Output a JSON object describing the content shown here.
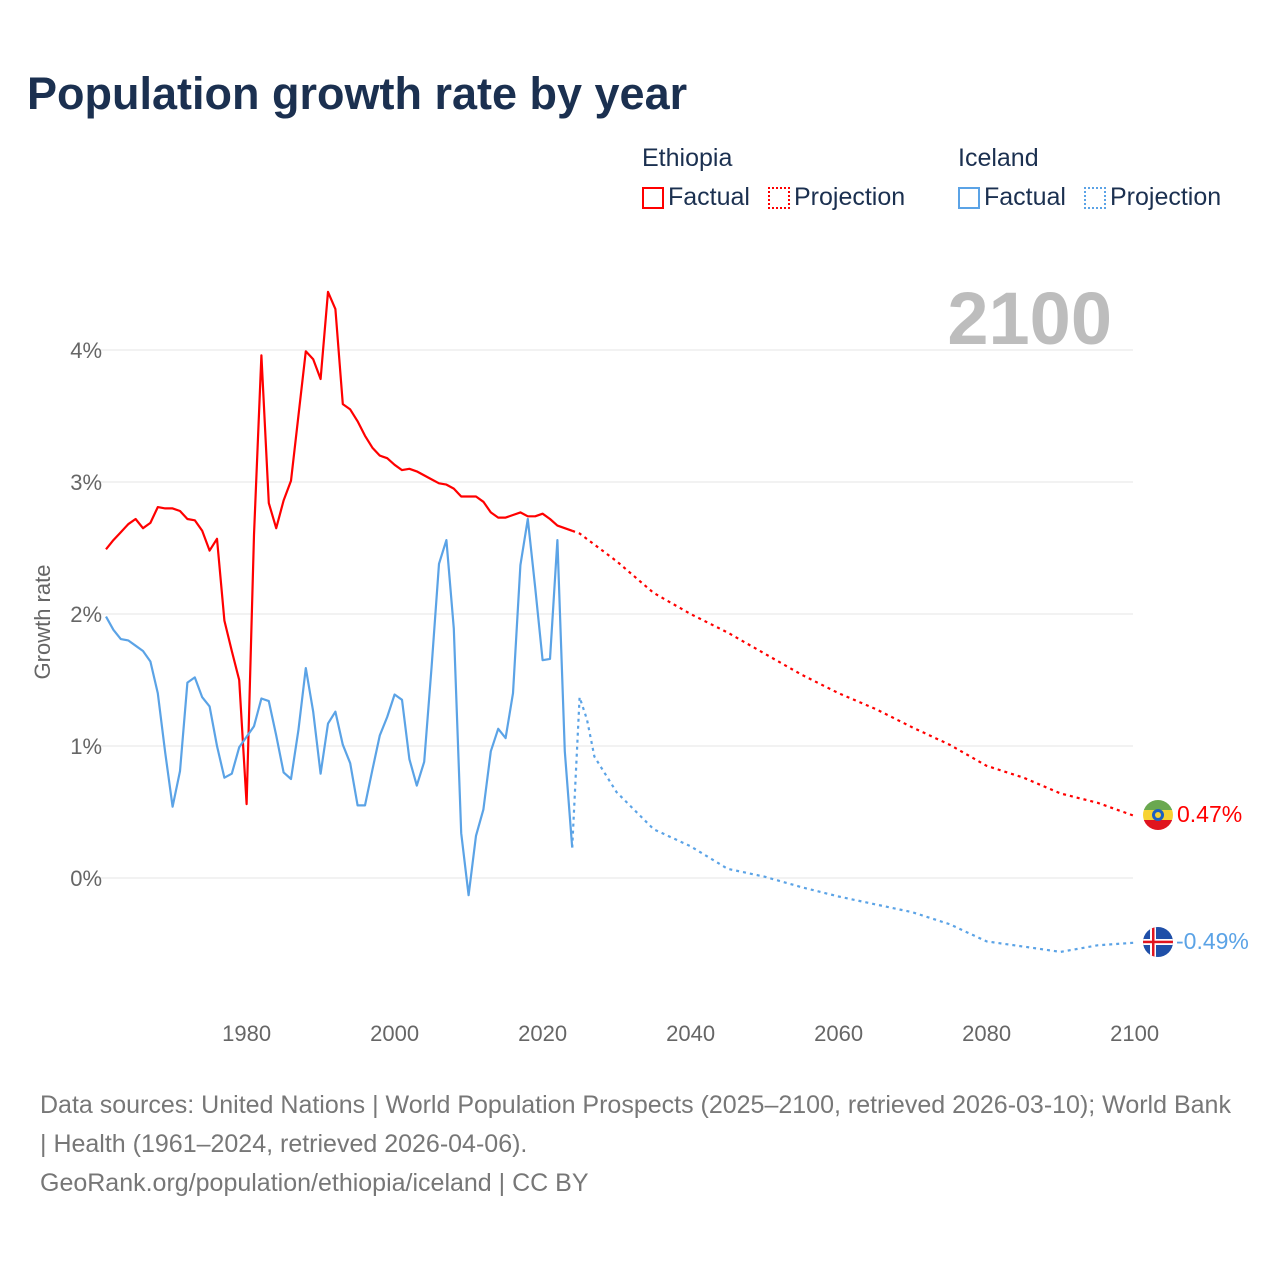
{
  "title": "Population growth rate by year",
  "year_badge": "2100",
  "legend": {
    "groups": [
      {
        "name": "Ethiopia",
        "factual": "Factual",
        "projection": "Projection",
        "color": "#ff0000"
      },
      {
        "name": "Iceland",
        "factual": "Factual",
        "projection": "Projection",
        "color": "#5ba3e6"
      }
    ]
  },
  "end_labels": {
    "ethiopia": "0.47%",
    "iceland": "-0.49%"
  },
  "footer": {
    "line1": "Data sources: United Nations | World Population Prospects (2025–2100, retrieved 2026-03-10); World Bank | Health (1961–2024, retrieved 2026-04-06).",
    "line2": "GeoRank.org/population/ethiopia/iceland | CC BY"
  },
  "chart_data": {
    "type": "line",
    "ylabel": "Growth rate",
    "xlabel": "",
    "xlim": [
      1961,
      2100
    ],
    "ylim": [
      -0.8,
      4.6
    ],
    "x_ticks": [
      "1980",
      "2000",
      "2020",
      "2040",
      "2060",
      "2080",
      "2100"
    ],
    "y_ticks": [
      "0%",
      "1%",
      "2%",
      "3%",
      "4%"
    ],
    "grid": true,
    "series": [
      {
        "name": "Ethiopia Factual",
        "color": "#ff0000",
        "dashed": false,
        "x": [
          1961,
          1962,
          1963,
          1964,
          1965,
          1966,
          1967,
          1968,
          1969,
          1970,
          1971,
          1972,
          1973,
          1974,
          1975,
          1976,
          1977,
          1978,
          1979,
          1980,
          1981,
          1982,
          1983,
          1984,
          1985,
          1986,
          1987,
          1988,
          1989,
          1990,
          1991,
          1992,
          1993,
          1994,
          1995,
          1996,
          1997,
          1998,
          1999,
          2000,
          2001,
          2002,
          2003,
          2004,
          2005,
          2006,
          2007,
          2008,
          2009,
          2010,
          2011,
          2012,
          2013,
          2014,
          2015,
          2016,
          2017,
          2018,
          2019,
          2020,
          2021,
          2022,
          2023,
          2024
        ],
        "y": [
          2.49,
          2.56,
          2.62,
          2.68,
          2.72,
          2.65,
          2.69,
          2.81,
          2.8,
          2.8,
          2.78,
          2.72,
          2.71,
          2.63,
          2.48,
          2.57,
          1.95,
          1.72,
          1.5,
          0.56,
          2.6,
          3.96,
          2.84,
          2.65,
          2.86,
          3.01,
          3.5,
          3.99,
          3.93,
          3.78,
          4.44,
          4.31,
          3.59,
          3.55,
          3.46,
          3.35,
          3.26,
          3.2,
          3.18,
          3.13,
          3.09,
          3.1,
          3.08,
          3.05,
          3.02,
          2.99,
          2.98,
          2.95,
          2.89,
          2.89,
          2.89,
          2.85,
          2.77,
          2.73,
          2.73,
          2.75,
          2.77,
          2.74,
          2.74,
          2.76,
          2.72,
          2.67,
          2.65,
          2.63
        ]
      },
      {
        "name": "Ethiopia Projection",
        "color": "#ff0000",
        "dashed": true,
        "x": [
          2024,
          2025,
          2030,
          2035,
          2040,
          2045,
          2050,
          2055,
          2060,
          2065,
          2070,
          2075,
          2080,
          2085,
          2090,
          2095,
          2100
        ],
        "y": [
          2.63,
          2.61,
          2.4,
          2.16,
          2.0,
          1.86,
          1.7,
          1.54,
          1.4,
          1.28,
          1.14,
          1.01,
          0.85,
          0.76,
          0.64,
          0.57,
          0.47
        ]
      },
      {
        "name": "Iceland Factual",
        "color": "#5ba3e6",
        "dashed": false,
        "x": [
          1961,
          1962,
          1963,
          1964,
          1965,
          1966,
          1967,
          1968,
          1969,
          1970,
          1971,
          1972,
          1973,
          1974,
          1975,
          1976,
          1977,
          1978,
          1979,
          1980,
          1981,
          1982,
          1983,
          1984,
          1985,
          1986,
          1987,
          1988,
          1989,
          1990,
          1991,
          1992,
          1993,
          1994,
          1995,
          1996,
          1997,
          1998,
          1999,
          2000,
          2001,
          2002,
          2003,
          2004,
          2005,
          2006,
          2007,
          2008,
          2009,
          2010,
          2011,
          2012,
          2013,
          2014,
          2015,
          2016,
          2017,
          2018,
          2019,
          2020,
          2021,
          2022,
          2023,
          2024
        ],
        "y": [
          1.98,
          1.88,
          1.81,
          1.8,
          1.76,
          1.72,
          1.64,
          1.4,
          0.95,
          0.54,
          0.81,
          1.48,
          1.52,
          1.37,
          1.3,
          1.0,
          0.76,
          0.79,
          0.99,
          1.07,
          1.15,
          1.36,
          1.34,
          1.08,
          0.8,
          0.75,
          1.12,
          1.59,
          1.26,
          0.79,
          1.17,
          1.26,
          1.01,
          0.87,
          0.55,
          0.55,
          0.82,
          1.08,
          1.22,
          1.39,
          1.35,
          0.9,
          0.7,
          0.88,
          1.6,
          2.38,
          2.56,
          1.89,
          0.34,
          -0.13,
          0.32,
          0.52,
          0.96,
          1.13,
          1.06,
          1.4,
          2.37,
          2.72,
          2.2,
          1.65,
          1.66,
          2.56,
          0.96,
          0.23
        ]
      },
      {
        "name": "Iceland Projection",
        "color": "#5ba3e6",
        "dashed": true,
        "x": [
          2024,
          2025,
          2026,
          2027,
          2030,
          2035,
          2040,
          2045,
          2050,
          2055,
          2060,
          2065,
          2070,
          2075,
          2080,
          2085,
          2090,
          2095,
          2100
        ],
        "y": [
          0.23,
          1.37,
          1.2,
          0.92,
          0.65,
          0.37,
          0.24,
          0.07,
          0.01,
          -0.07,
          -0.14,
          -0.2,
          -0.26,
          -0.35,
          -0.48,
          -0.52,
          -0.56,
          -0.51,
          -0.49
        ]
      }
    ]
  }
}
